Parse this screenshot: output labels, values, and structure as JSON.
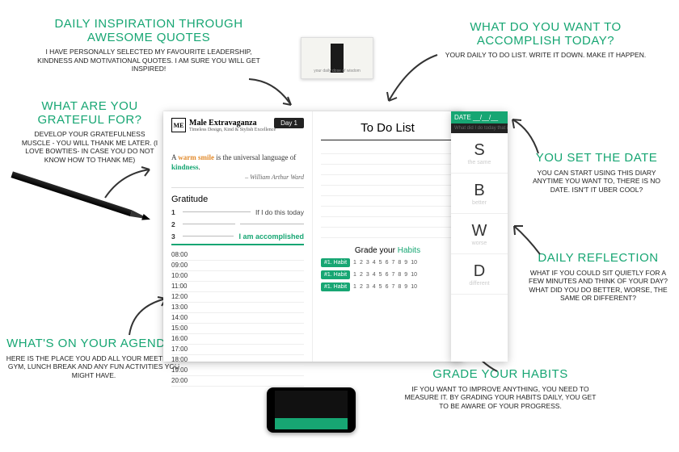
{
  "colors": {
    "accent": "#17a673",
    "warm": "#e28b2d",
    "text": "#222222"
  },
  "callouts": {
    "inspiration": {
      "title": "Daily inspiration through awesome quotes",
      "body": "I have personally selected my favourite leadership, kindness and motivational quotes. I am sure you will get inspired!",
      "title_color": "#17a673",
      "title_size": 15
    },
    "grateful": {
      "title": "What are you grateful for?",
      "body": "Develop your gratefulness muscle - you will thank me later. (I love bowties- in case you do not know how to thank me)",
      "title_color": "#17a673",
      "title_size": 15
    },
    "agenda": {
      "title": "What's on your agenda?",
      "body": "Here is the place you add all your meetings, gym, lunch break and any fun activities you might have.",
      "title_color": "#17a673",
      "title_size": 15
    },
    "accomplish": {
      "title": "What do you want to accomplish today?",
      "body": "Your daily to do list. Write it down. Make it happen.",
      "title_color": "#17a673",
      "title_size": 15
    },
    "setdate": {
      "title": "You set the date",
      "body": "You can start using this diary anytime you want to, there is no date. Isn't it uber cool?",
      "title_color": "#17a673",
      "title_size": 15
    },
    "reflection": {
      "title": "Daily reflection",
      "body": "What if you could sit quietly for a few minutes and think of your day? What did you do better, worse, the same or different?",
      "title_color": "#17a673",
      "title_size": 15
    },
    "gradehabits": {
      "title": "Grade your habits",
      "body": "If you want to improve anything, you need to measure it. By grading your habits daily, you get to be aware of your progress.",
      "title_color": "#17a673",
      "title_size": 15
    }
  },
  "planner": {
    "brand_name": "Male Extravaganza",
    "brand_tag": "Timeless Design, Kind & Stylish Excellence",
    "day_label": "Day 1",
    "quote_pre": "A ",
    "quote_hl1": "warm smile",
    "quote_mid": " is the universal language of ",
    "quote_hl2": "kindness",
    "quote_post": ".",
    "quote_author": "– William Arthur Ward",
    "gratitude_h": "Gratitude",
    "if_label": "If I do this today",
    "accomplished_label": "I am accomplished",
    "grat_nums": [
      "1",
      "2",
      "3"
    ],
    "schedule": [
      "08:00",
      "09:00",
      "10:00",
      "11:00",
      "12:00",
      "13:00",
      "14:00",
      "15:00",
      "16:00",
      "17:00",
      "18:00",
      "19:00",
      "20:00"
    ],
    "todo_h": "To Do List",
    "habits_h_pre": "Grade your ",
    "habits_h_hl": "Habits",
    "habit_badge": "#1. Habit",
    "habit_scale": [
      "1",
      "2",
      "3",
      "4",
      "5",
      "6",
      "7",
      "8",
      "9",
      "10"
    ]
  },
  "side": {
    "date_label": "DATE",
    "prompt": "What did I do today that is…",
    "cells": [
      {
        "letter": "S",
        "word": "the same"
      },
      {
        "letter": "B",
        "word": "better"
      },
      {
        "letter": "W",
        "word": "worse"
      },
      {
        "letter": "D",
        "word": "different"
      }
    ]
  },
  "topcard": {
    "caption": "your daily dose of wisdom"
  },
  "phone": {
    "text": ""
  }
}
